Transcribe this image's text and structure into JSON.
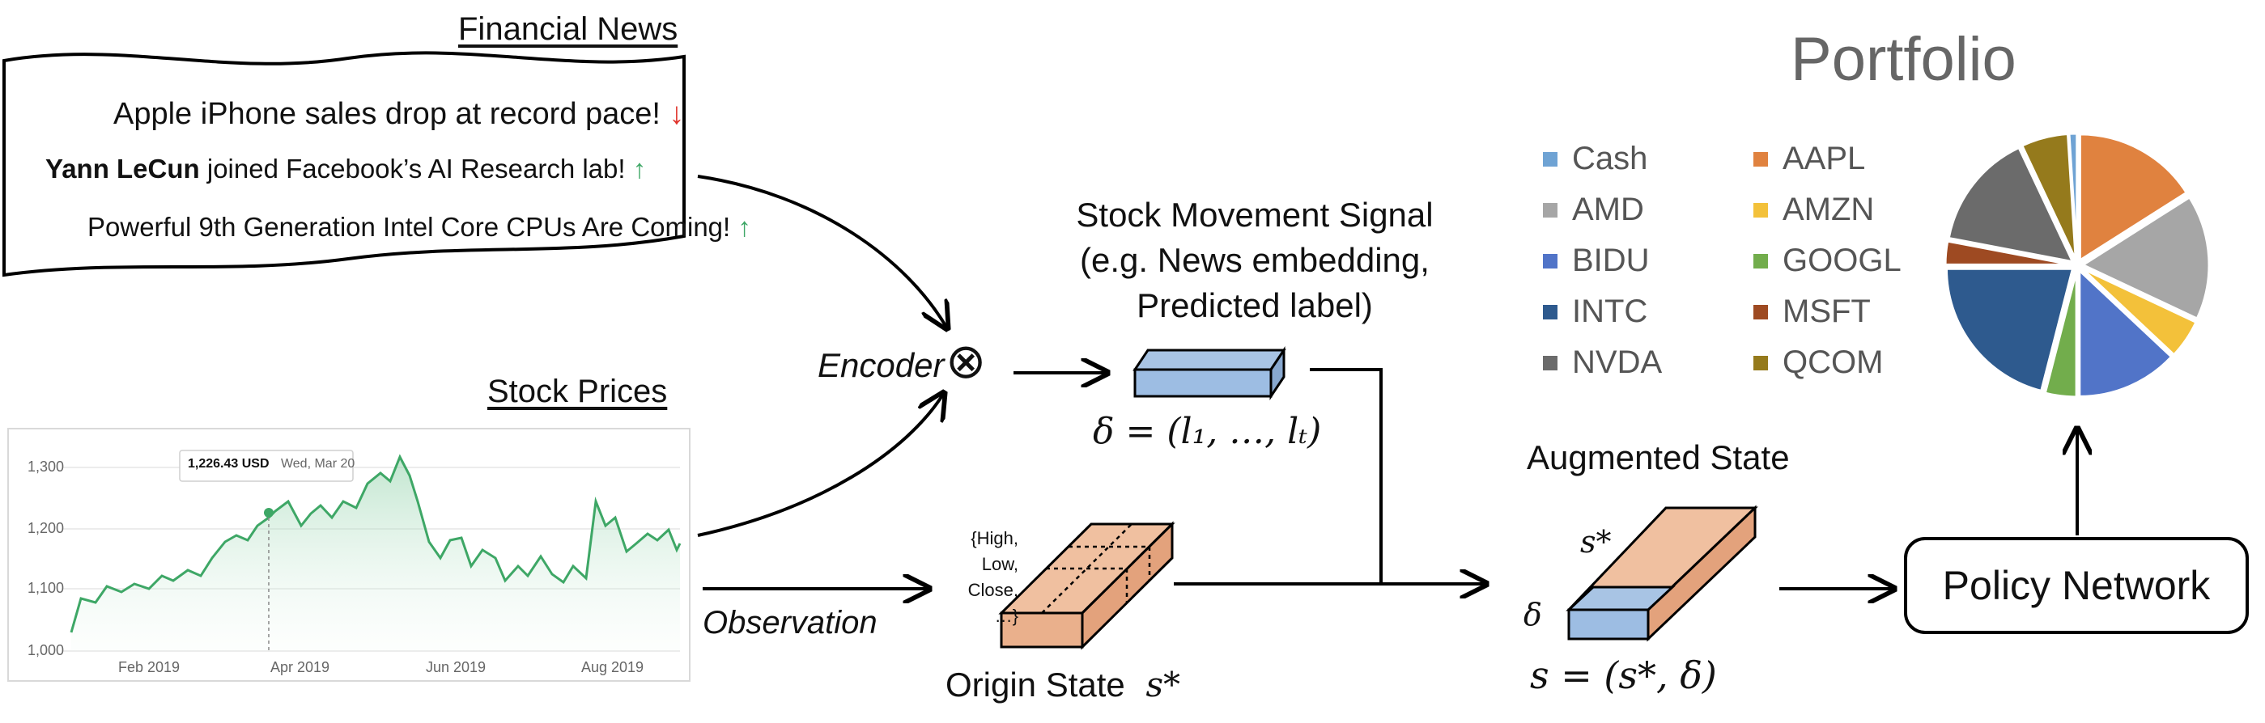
{
  "news": {
    "title": "Financial News",
    "headline1": "Apple iPhone sales drop at record pace!",
    "headline2_bold": "Yann LeCun",
    "headline2_rest": " joined Facebook’s AI Research lab!",
    "headline3": "Powerful 9th Generation Intel Core CPUs Are Coming!",
    "down_arrow": "↓",
    "up_arrow": "↑"
  },
  "prices": {
    "title": "Stock Prices",
    "tooltip_value": "1,226.43 USD",
    "tooltip_date": "Wed, Mar 20",
    "y_ticks": [
      "1,300",
      "1,200",
      "1,100",
      "1,000"
    ],
    "x_ticks": [
      "Feb 2019",
      "Apr 2019",
      "Jun 2019",
      "Aug 2019"
    ]
  },
  "encoder": {
    "label": "Encoder",
    "symbol": "⊗"
  },
  "observation": {
    "label": "Observation"
  },
  "signal": {
    "caption_line1": "Stock Movement Signal",
    "caption_line2": "(e.g. News embedding,",
    "caption_line3": "Predicted label)",
    "formula": "δ = (l₁, …, lₜ)"
  },
  "origin": {
    "features_line1": "{High,",
    "features_line2": "Low,",
    "features_line3": "Close,",
    "features_line4": "…}",
    "label": "Origin State",
    "symbol": "s*"
  },
  "augmented": {
    "label": "Augmented State",
    "s_star": "s*",
    "delta": "δ",
    "formula": "s = (s*, δ)"
  },
  "policy": {
    "label": "Policy Network"
  },
  "portfolio": {
    "title": "Portfolio",
    "legend": [
      {
        "name": "Cash",
        "color": "#6fa3d4"
      },
      {
        "name": "AAPL",
        "color": "#e0823f"
      },
      {
        "name": "AMD",
        "color": "#a6a6a6"
      },
      {
        "name": "AMZN",
        "color": "#f3c13a"
      },
      {
        "name": "BIDU",
        "color": "#5174c8"
      },
      {
        "name": "GOOGL",
        "color": "#72ad4c"
      },
      {
        "name": "INTC",
        "color": "#2e5a8e"
      },
      {
        "name": "MSFT",
        "color": "#9e4a22"
      },
      {
        "name": "NVDA",
        "color": "#6b6b6b"
      },
      {
        "name": "QCOM",
        "color": "#957a1c"
      }
    ],
    "slices": [
      {
        "name": "AAPL",
        "value": 16,
        "color": "#e0823f"
      },
      {
        "name": "AMD",
        "value": 16,
        "color": "#a6a6a6"
      },
      {
        "name": "AMZN",
        "value": 5,
        "color": "#f3c13a"
      },
      {
        "name": "BIDU",
        "value": 13,
        "color": "#5174c8"
      },
      {
        "name": "GOOGL",
        "value": 4,
        "color": "#72ad4c"
      },
      {
        "name": "INTC",
        "value": 21,
        "color": "#2e5a8e"
      },
      {
        "name": "MSFT",
        "value": 3,
        "color": "#9e4a22"
      },
      {
        "name": "NVDA",
        "value": 15,
        "color": "#6b6b6b"
      },
      {
        "name": "QCOM",
        "value": 6,
        "color": "#957a1c"
      },
      {
        "name": "Cash",
        "value": 1,
        "color": "#6fa3d4"
      }
    ]
  }
}
